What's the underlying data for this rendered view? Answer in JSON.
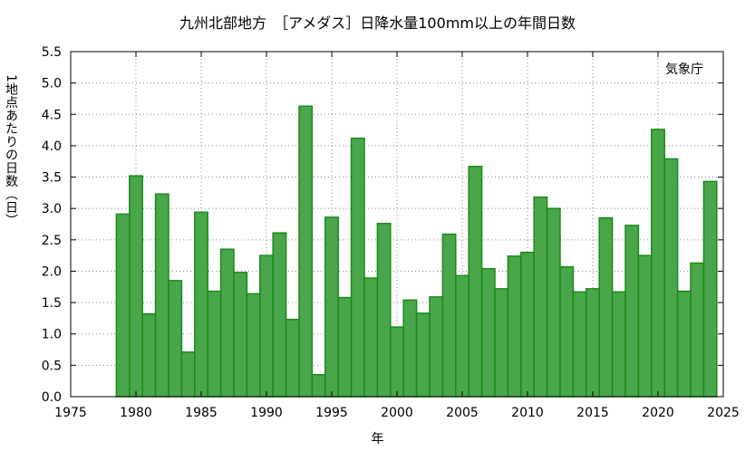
{
  "chart_data": {
    "type": "bar",
    "title": "九州北部地方　［アメダス］日降水量100mm以上の年間日数",
    "xlabel": "年",
    "ylabel": "1地点あたりの日数（日）",
    "source_label": "気象庁",
    "xlim": [
      1975,
      2025
    ],
    "ylim": [
      0.0,
      5.5
    ],
    "x_ticks": [
      "1975",
      "1980",
      "1985",
      "1990",
      "1995",
      "2000",
      "2005",
      "2010",
      "2015",
      "2020",
      "2025"
    ],
    "y_ticks": [
      "0.0",
      "0.5",
      "1.0",
      "1.5",
      "2.0",
      "2.5",
      "3.0",
      "3.5",
      "4.0",
      "4.5",
      "5.0",
      "5.5"
    ],
    "grid": true,
    "bar_color": "#4aa64a",
    "bar_edge_color": "#1a8a1a",
    "x": [
      1979,
      1980,
      1981,
      1982,
      1983,
      1984,
      1985,
      1986,
      1987,
      1988,
      1989,
      1990,
      1991,
      1992,
      1993,
      1994,
      1995,
      1996,
      1997,
      1998,
      1999,
      2000,
      2001,
      2002,
      2003,
      2004,
      2005,
      2006,
      2007,
      2008,
      2009,
      2010,
      2011,
      2012,
      2013,
      2014,
      2015,
      2016,
      2017,
      2018,
      2019,
      2020,
      2021,
      2022,
      2023,
      2024
    ],
    "values": [
      2.91,
      3.52,
      1.32,
      3.23,
      1.85,
      0.71,
      2.94,
      1.68,
      2.35,
      1.98,
      1.64,
      2.25,
      2.61,
      1.23,
      4.63,
      0.35,
      2.86,
      1.58,
      4.12,
      1.89,
      2.76,
      1.11,
      1.54,
      1.33,
      1.59,
      2.59,
      1.93,
      3.67,
      2.04,
      1.72,
      2.24,
      2.3,
      3.18,
      3.0,
      2.07,
      1.67,
      1.72,
      2.85,
      1.67,
      2.73,
      2.25,
      4.26,
      3.79,
      1.68,
      2.13,
      3.43
    ]
  }
}
